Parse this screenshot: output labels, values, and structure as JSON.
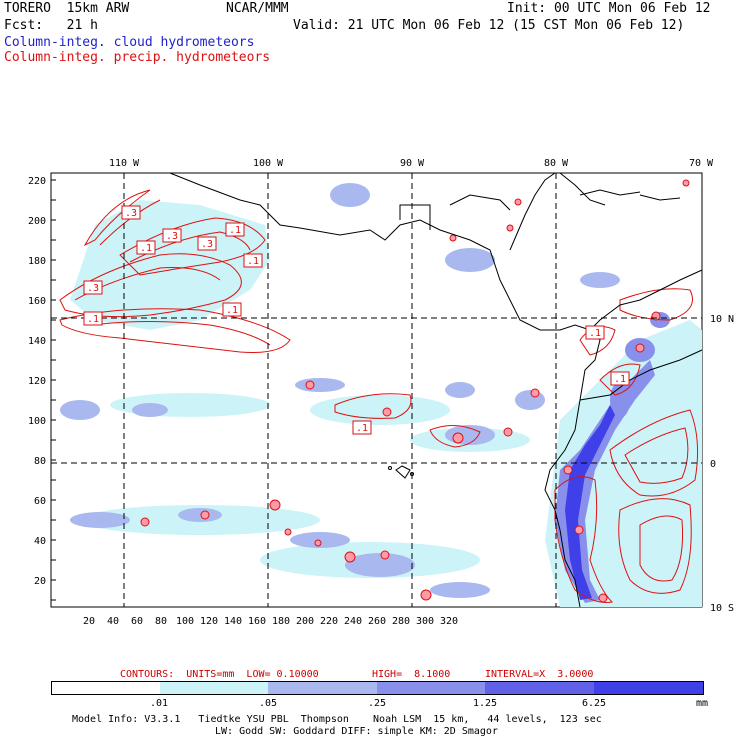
{
  "header": {
    "model": "TORERO  15km ARW",
    "org": "NCAR/MMM",
    "init": "Init: 00 UTC Mon 06 Feb 12",
    "fcst": "Fcst:   21 h",
    "valid": "Valid: 21 UTC Mon 06 Feb 12 (15 CST Mon 06 Feb 12)",
    "field1": "Column-integ. cloud hydrometeors",
    "field2": "Column-integ. precip. hydrometeors"
  },
  "map": {
    "lon_labels": [
      "110 W",
      "100 W",
      "90 W",
      "80 W",
      "70 W"
    ],
    "lat_labels": [
      "10 N",
      "0",
      "10 S"
    ],
    "y_ticks": [
      "220",
      "200",
      "180",
      "160",
      "140",
      "120",
      "100",
      "80",
      "60",
      "40",
      "20"
    ],
    "x_ticks": [
      "20",
      "40",
      "60",
      "80",
      "100",
      "120",
      "140",
      "160",
      "180",
      "200",
      "220",
      "240",
      "260",
      "280",
      "300",
      "320"
    ],
    "contour_labels": [
      ".3",
      ".1",
      ".1",
      ".3",
      ".3",
      ".1",
      ".3",
      ".1",
      ".1",
      ".1",
      ".1",
      ".1"
    ]
  },
  "contours_info": {
    "units": "CONTOURS:  UNITS=mm  LOW= 0.10000",
    "high": "HIGH=  8.1000",
    "interval": "INTERVAL=X  3.0000"
  },
  "colorbar": {
    "labels": [
      ".01",
      ".05",
      ".25",
      "1.25",
      "6.25"
    ],
    "unit": "mm",
    "colors": [
      "#ffffff",
      "#ccf4f8",
      "#aab8f0",
      "#8890ec",
      "#6060e8",
      "#4040e8",
      "#2020e8"
    ]
  },
  "footer": {
    "line1": "Model Info: V3.3.1   Tiedtke YSU PBL  Thompson    Noah LSM  15 km,   44 levels,  123 sec",
    "line2": "LW: Godd SW: Goddard DIFF: simple KM: 2D Smagor"
  }
}
